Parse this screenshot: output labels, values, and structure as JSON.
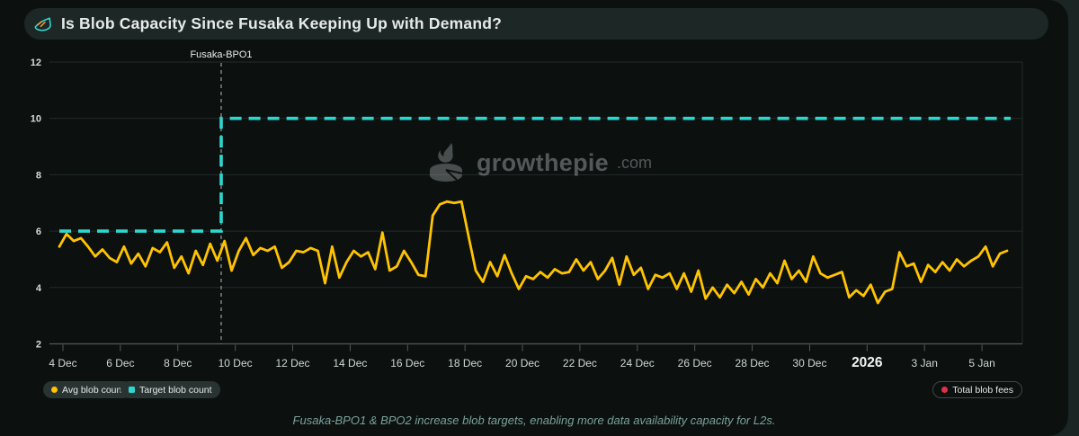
{
  "header": {
    "title": "Is Blob Capacity Since Fusaka Keeping Up with Demand?"
  },
  "watermark": {
    "name": "growthepie",
    "tld": ".com"
  },
  "legend": [
    {
      "label": "Avg blob count",
      "color": "#ffc300",
      "style": "filled"
    },
    {
      "label": "Target blob count",
      "color": "#2dd7cf",
      "style": "filled"
    },
    {
      "label": "Total blob fees",
      "color": "#e0314b",
      "style": "outlined"
    }
  ],
  "footer": {
    "note": "Fusaka-BPO1 & BPO2 increase blob targets, enabling more data availability capacity for L2s."
  },
  "colors": {
    "avg_line": "#ffc300",
    "target_line": "#2dd7cf",
    "fees_marker": "#e0314b",
    "grid": "#222b29",
    "axis": "#515a58",
    "annotation_line": "#97a19f",
    "card_bg": "#0c1110",
    "titlebar_bg": "#1d2726"
  },
  "chart_data": {
    "type": "line",
    "title": "Is Blob Capacity Since Fusaka Keeping Up with Demand?",
    "x_unit": "days since 4 Dec 2025",
    "x_tick_labels": [
      "4 Dec",
      "6 Dec",
      "8 Dec",
      "10 Dec",
      "12 Dec",
      "14 Dec",
      "16 Dec",
      "18 Dec",
      "20 Dec",
      "22 Dec",
      "24 Dec",
      "26 Dec",
      "28 Dec",
      "30 Dec",
      "2026",
      "3 Jan",
      "5 Jan"
    ],
    "x_tick_days": [
      0,
      2,
      4,
      6,
      8,
      10,
      12,
      14,
      16,
      18,
      20,
      22,
      24,
      26,
      28,
      30,
      32
    ],
    "year_tick_label": "2026",
    "y_ticks": [
      2,
      4,
      6,
      8,
      10,
      12
    ],
    "ylim": [
      2,
      12
    ],
    "xlim_days": [
      -0.5,
      33.4
    ],
    "grid": true,
    "legend_position": "bottom",
    "annotation": {
      "label": "Fusaka-BPO1",
      "x_day": 5.51
    },
    "series": [
      {
        "name": "Avg blob count",
        "color": "#ffc300",
        "t0": -0.125,
        "dt": 0.25,
        "values": [
          5.45,
          5.9,
          5.65,
          5.75,
          5.45,
          5.1,
          5.35,
          5.05,
          4.9,
          5.45,
          4.85,
          5.2,
          4.75,
          5.4,
          5.25,
          5.6,
          4.7,
          5.1,
          4.5,
          5.3,
          4.8,
          5.55,
          4.95,
          5.65,
          4.6,
          5.3,
          5.75,
          5.15,
          5.4,
          5.3,
          5.45,
          4.7,
          4.9,
          5.3,
          5.25,
          5.4,
          5.3,
          4.15,
          5.45,
          4.35,
          4.9,
          5.3,
          5.1,
          5.25,
          4.65,
          5.95,
          4.6,
          4.75,
          5.3,
          4.9,
          4.45,
          4.4,
          6.55,
          6.95,
          7.05,
          7.0,
          7.05,
          5.8,
          4.6,
          4.2,
          4.9,
          4.4,
          5.15,
          4.5,
          3.95,
          4.4,
          4.3,
          4.55,
          4.35,
          4.65,
          4.5,
          4.55,
          5.0,
          4.6,
          4.9,
          4.3,
          4.6,
          5.05,
          4.1,
          5.1,
          4.45,
          4.7,
          3.95,
          4.45,
          4.35,
          4.5,
          3.95,
          4.5,
          3.85,
          4.6,
          3.6,
          4.0,
          3.65,
          4.1,
          3.8,
          4.2,
          3.75,
          4.3,
          4.0,
          4.5,
          4.15,
          4.95,
          4.3,
          4.6,
          4.2,
          5.1,
          4.5,
          4.35,
          4.45,
          4.55,
          3.65,
          3.9,
          3.7,
          4.1,
          3.45,
          3.85,
          3.95,
          5.25,
          4.75,
          4.85,
          4.2,
          4.8,
          4.55,
          4.9,
          4.6,
          5.0,
          4.75,
          4.95,
          5.1,
          5.45,
          4.75,
          5.2,
          5.3
        ]
      },
      {
        "name": "Target blob count",
        "color": "#2dd7cf",
        "dashed": true,
        "step_points": [
          [
            -0.125,
            6
          ],
          [
            5.51,
            6
          ],
          [
            5.51,
            10
          ],
          [
            33.0,
            10
          ]
        ]
      },
      {
        "name": "Total blob fees",
        "color": "#e0314b",
        "shown": false
      }
    ]
  }
}
